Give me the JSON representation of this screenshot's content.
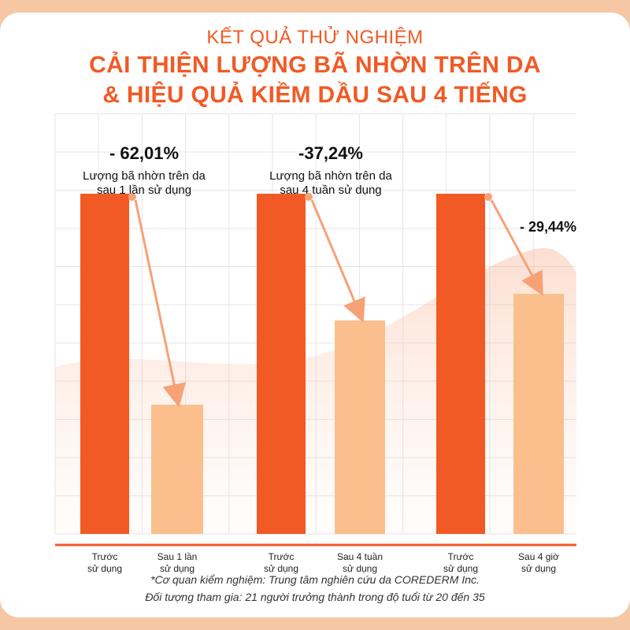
{
  "header": {
    "subtitle": "KẾT QUẢ THỬ NGHIỆM",
    "title_line1": "CẢI THIỆN LƯỢNG BÃ NHỜN TRÊN DA",
    "title_line2": "& HIỆU QUẢ KIỀM DẦU SAU 4 TIẾNG"
  },
  "colors": {
    "accent": "#f15a24",
    "before_bar": "#f15a24",
    "after_bar": "#fbbf8d",
    "arrow": "#f7a177",
    "grid": "#e6e6e6",
    "background": "#f6c7a4"
  },
  "chart_data": {
    "type": "bar",
    "title": "CẢI THIỆN LƯỢNG BÃ NHỜN TRÊN DA & HIỆU QUẢ KIỀM DẦU SAU 4 TIẾNG",
    "ylim": [
      0,
      100
    ],
    "grid": true,
    "groups": [
      {
        "change_label": "- 62,01%",
        "description": [
          "Lượng bã nhờn trên da",
          "sau 1 lần sử dụng"
        ],
        "bars": [
          {
            "label": [
              "Trước",
              "sử dụng"
            ],
            "value": 100,
            "kind": "before"
          },
          {
            "label": [
              "Sau 1 lần",
              "sử dụng"
            ],
            "value": 37.99,
            "kind": "after"
          }
        ]
      },
      {
        "change_label": "-37,24%",
        "description": [
          "Lượng bã nhờn trên da",
          "sau 4 tuần sử dụng"
        ],
        "bars": [
          {
            "label": [
              "Trước",
              "sử dụng"
            ],
            "value": 100,
            "kind": "before"
          },
          {
            "label": [
              "Sau 4 tuần",
              "sử dụng"
            ],
            "value": 62.76,
            "kind": "after"
          }
        ]
      },
      {
        "change_label": "- 29,44%",
        "description": [],
        "bars": [
          {
            "label": [
              "Trước",
              "sử dụng"
            ],
            "value": 100,
            "kind": "before"
          },
          {
            "label": [
              "Sau 4 giờ",
              "sử dụng"
            ],
            "value": 70.56,
            "kind": "after"
          }
        ]
      }
    ]
  },
  "footnotes": {
    "line1": "*Cơ quan kiểm nghiệm: Trung tâm nghiên cứu da COREDERM Inc.",
    "line2": "Đối tượng tham gia: 21 người trưởng thành trong độ tuổi từ 20 đến 35"
  }
}
